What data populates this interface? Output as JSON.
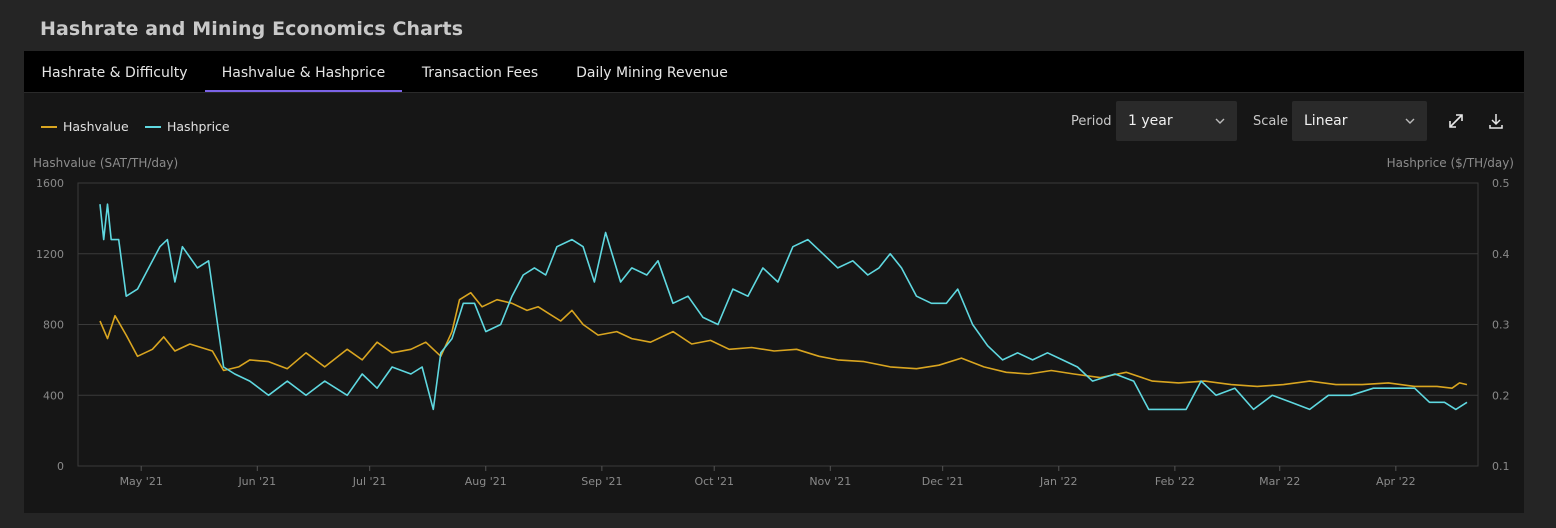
{
  "page": {
    "title": "Hashrate and Mining Economics Charts"
  },
  "tabs": [
    {
      "label": "Hashrate & Difficulty",
      "active": false
    },
    {
      "label": "Hashvalue & Hashprice",
      "active": true
    },
    {
      "label": "Transaction Fees",
      "active": false
    },
    {
      "label": "Daily Mining Revenue",
      "active": false
    }
  ],
  "controls": {
    "period_label": "Period",
    "period_value": "1 year",
    "scale_label": "Scale",
    "scale_value": "Linear",
    "expand_icon": "expand-icon",
    "download_icon": "download-icon"
  },
  "colors": {
    "hashvalue": "#d9a520",
    "hashprice": "#5fd8e0",
    "tab_active": "#7b63e6"
  },
  "chart_data": {
    "type": "line",
    "x_start": "2021-04-20",
    "x_end": "2022-04-20",
    "x_ticks": [
      "May '21",
      "Jun '21",
      "Jul '21",
      "Aug '21",
      "Sep '21",
      "Oct '21",
      "Nov '21",
      "Dec '21",
      "Jan '22",
      "Feb '22",
      "Mar '22",
      "Apr '22"
    ],
    "x_tick_dates": [
      "2021-05-01",
      "2021-06-01",
      "2021-07-01",
      "2021-08-01",
      "2021-09-01",
      "2021-10-01",
      "2021-11-01",
      "2021-12-01",
      "2022-01-01",
      "2022-02-01",
      "2022-03-01",
      "2022-04-01"
    ],
    "ylabel_left": "Hashvalue (SAT/TH/day)",
    "ylabel_right": "Hashprice ($/TH/day)",
    "ylim_left": [
      0,
      1600
    ],
    "ylim_right": [
      0.1,
      0.5
    ],
    "yticks_left": [
      "0",
      "400",
      "800",
      "1200",
      "1600"
    ],
    "yticks_right": [
      "0.1",
      "0.2",
      "0.3",
      "0.4",
      "0.5"
    ],
    "grid": true,
    "legend": "top-left",
    "series": [
      {
        "name": "Hashvalue",
        "axis": "left",
        "points": [
          [
            "2021-04-20",
            820
          ],
          [
            "2021-04-22",
            720
          ],
          [
            "2021-04-24",
            850
          ],
          [
            "2021-04-27",
            740
          ],
          [
            "2021-04-30",
            620
          ],
          [
            "2021-05-04",
            660
          ],
          [
            "2021-05-07",
            730
          ],
          [
            "2021-05-10",
            650
          ],
          [
            "2021-05-14",
            690
          ],
          [
            "2021-05-20",
            650
          ],
          [
            "2021-05-23",
            540
          ],
          [
            "2021-05-27",
            560
          ],
          [
            "2021-05-30",
            600
          ],
          [
            "2021-06-04",
            590
          ],
          [
            "2021-06-09",
            550
          ],
          [
            "2021-06-14",
            640
          ],
          [
            "2021-06-19",
            560
          ],
          [
            "2021-06-25",
            660
          ],
          [
            "2021-06-29",
            600
          ],
          [
            "2021-07-03",
            700
          ],
          [
            "2021-07-07",
            640
          ],
          [
            "2021-07-12",
            660
          ],
          [
            "2021-07-16",
            700
          ],
          [
            "2021-07-20",
            620
          ],
          [
            "2021-07-23",
            760
          ],
          [
            "2021-07-25",
            940
          ],
          [
            "2021-07-28",
            980
          ],
          [
            "2021-07-31",
            900
          ],
          [
            "2021-08-04",
            940
          ],
          [
            "2021-08-08",
            920
          ],
          [
            "2021-08-12",
            880
          ],
          [
            "2021-08-15",
            900
          ],
          [
            "2021-08-18",
            860
          ],
          [
            "2021-08-21",
            820
          ],
          [
            "2021-08-24",
            880
          ],
          [
            "2021-08-27",
            800
          ],
          [
            "2021-08-31",
            740
          ],
          [
            "2021-09-05",
            760
          ],
          [
            "2021-09-09",
            720
          ],
          [
            "2021-09-14",
            700
          ],
          [
            "2021-09-20",
            760
          ],
          [
            "2021-09-25",
            690
          ],
          [
            "2021-09-30",
            710
          ],
          [
            "2021-10-05",
            660
          ],
          [
            "2021-10-11",
            670
          ],
          [
            "2021-10-17",
            650
          ],
          [
            "2021-10-23",
            660
          ],
          [
            "2021-10-29",
            620
          ],
          [
            "2021-11-03",
            600
          ],
          [
            "2021-11-10",
            590
          ],
          [
            "2021-11-17",
            560
          ],
          [
            "2021-11-24",
            550
          ],
          [
            "2021-11-30",
            570
          ],
          [
            "2021-12-06",
            610
          ],
          [
            "2021-12-12",
            560
          ],
          [
            "2021-12-18",
            530
          ],
          [
            "2021-12-24",
            520
          ],
          [
            "2021-12-30",
            540
          ],
          [
            "2022-01-05",
            520
          ],
          [
            "2022-01-12",
            500
          ],
          [
            "2022-01-19",
            530
          ],
          [
            "2022-01-26",
            480
          ],
          [
            "2022-02-02",
            470
          ],
          [
            "2022-02-09",
            480
          ],
          [
            "2022-02-16",
            460
          ],
          [
            "2022-02-23",
            450
          ],
          [
            "2022-03-02",
            460
          ],
          [
            "2022-03-09",
            480
          ],
          [
            "2022-03-16",
            460
          ],
          [
            "2022-03-23",
            460
          ],
          [
            "2022-03-30",
            470
          ],
          [
            "2022-04-06",
            450
          ],
          [
            "2022-04-12",
            450
          ],
          [
            "2022-04-16",
            440
          ],
          [
            "2022-04-18",
            470
          ],
          [
            "2022-04-20",
            460
          ]
        ]
      },
      {
        "name": "Hashprice",
        "axis": "right",
        "points": [
          [
            "2021-04-20",
            0.47
          ],
          [
            "2021-04-21",
            0.42
          ],
          [
            "2021-04-22",
            0.47
          ],
          [
            "2021-04-23",
            0.42
          ],
          [
            "2021-04-25",
            0.42
          ],
          [
            "2021-04-27",
            0.34
          ],
          [
            "2021-04-30",
            0.35
          ],
          [
            "2021-05-03",
            0.38
          ],
          [
            "2021-05-06",
            0.41
          ],
          [
            "2021-05-08",
            0.42
          ],
          [
            "2021-05-10",
            0.36
          ],
          [
            "2021-05-12",
            0.41
          ],
          [
            "2021-05-16",
            0.38
          ],
          [
            "2021-05-19",
            0.39
          ],
          [
            "2021-05-23",
            0.24
          ],
          [
            "2021-05-26",
            0.23
          ],
          [
            "2021-05-30",
            0.22
          ],
          [
            "2021-06-04",
            0.2
          ],
          [
            "2021-06-09",
            0.22
          ],
          [
            "2021-06-14",
            0.2
          ],
          [
            "2021-06-19",
            0.22
          ],
          [
            "2021-06-25",
            0.2
          ],
          [
            "2021-06-29",
            0.23
          ],
          [
            "2021-07-03",
            0.21
          ],
          [
            "2021-07-07",
            0.24
          ],
          [
            "2021-07-12",
            0.23
          ],
          [
            "2021-07-15",
            0.24
          ],
          [
            "2021-07-18",
            0.18
          ],
          [
            "2021-07-20",
            0.26
          ],
          [
            "2021-07-23",
            0.28
          ],
          [
            "2021-07-26",
            0.33
          ],
          [
            "2021-07-29",
            0.33
          ],
          [
            "2021-08-01",
            0.29
          ],
          [
            "2021-08-05",
            0.3
          ],
          [
            "2021-08-08",
            0.34
          ],
          [
            "2021-08-11",
            0.37
          ],
          [
            "2021-08-14",
            0.38
          ],
          [
            "2021-08-17",
            0.37
          ],
          [
            "2021-08-20",
            0.41
          ],
          [
            "2021-08-24",
            0.42
          ],
          [
            "2021-08-27",
            0.41
          ],
          [
            "2021-08-30",
            0.36
          ],
          [
            "2021-09-02",
            0.43
          ],
          [
            "2021-09-06",
            0.36
          ],
          [
            "2021-09-09",
            0.38
          ],
          [
            "2021-09-13",
            0.37
          ],
          [
            "2021-09-16",
            0.39
          ],
          [
            "2021-09-20",
            0.33
          ],
          [
            "2021-09-24",
            0.34
          ],
          [
            "2021-09-28",
            0.31
          ],
          [
            "2021-10-02",
            0.3
          ],
          [
            "2021-10-06",
            0.35
          ],
          [
            "2021-10-10",
            0.34
          ],
          [
            "2021-10-14",
            0.38
          ],
          [
            "2021-10-18",
            0.36
          ],
          [
            "2021-10-22",
            0.41
          ],
          [
            "2021-10-26",
            0.42
          ],
          [
            "2021-10-30",
            0.4
          ],
          [
            "2021-11-03",
            0.38
          ],
          [
            "2021-11-07",
            0.39
          ],
          [
            "2021-11-11",
            0.37
          ],
          [
            "2021-11-14",
            0.38
          ],
          [
            "2021-11-17",
            0.4
          ],
          [
            "2021-11-20",
            0.38
          ],
          [
            "2021-11-24",
            0.34
          ],
          [
            "2021-11-28",
            0.33
          ],
          [
            "2021-12-02",
            0.33
          ],
          [
            "2021-12-05",
            0.35
          ],
          [
            "2021-12-09",
            0.3
          ],
          [
            "2021-12-13",
            0.27
          ],
          [
            "2021-12-17",
            0.25
          ],
          [
            "2021-12-21",
            0.26
          ],
          [
            "2021-12-25",
            0.25
          ],
          [
            "2021-12-29",
            0.26
          ],
          [
            "2022-01-02",
            0.25
          ],
          [
            "2022-01-06",
            0.24
          ],
          [
            "2022-01-10",
            0.22
          ],
          [
            "2022-01-16",
            0.23
          ],
          [
            "2022-01-21",
            0.22
          ],
          [
            "2022-01-25",
            0.18
          ],
          [
            "2022-01-30",
            0.18
          ],
          [
            "2022-02-04",
            0.18
          ],
          [
            "2022-02-08",
            0.22
          ],
          [
            "2022-02-12",
            0.2
          ],
          [
            "2022-02-17",
            0.21
          ],
          [
            "2022-02-22",
            0.18
          ],
          [
            "2022-02-27",
            0.2
          ],
          [
            "2022-03-04",
            0.19
          ],
          [
            "2022-03-09",
            0.18
          ],
          [
            "2022-03-14",
            0.2
          ],
          [
            "2022-03-20",
            0.2
          ],
          [
            "2022-03-26",
            0.21
          ],
          [
            "2022-04-01",
            0.21
          ],
          [
            "2022-04-06",
            0.21
          ],
          [
            "2022-04-10",
            0.19
          ],
          [
            "2022-04-14",
            0.19
          ],
          [
            "2022-04-17",
            0.18
          ],
          [
            "2022-04-20",
            0.19
          ]
        ]
      }
    ]
  }
}
